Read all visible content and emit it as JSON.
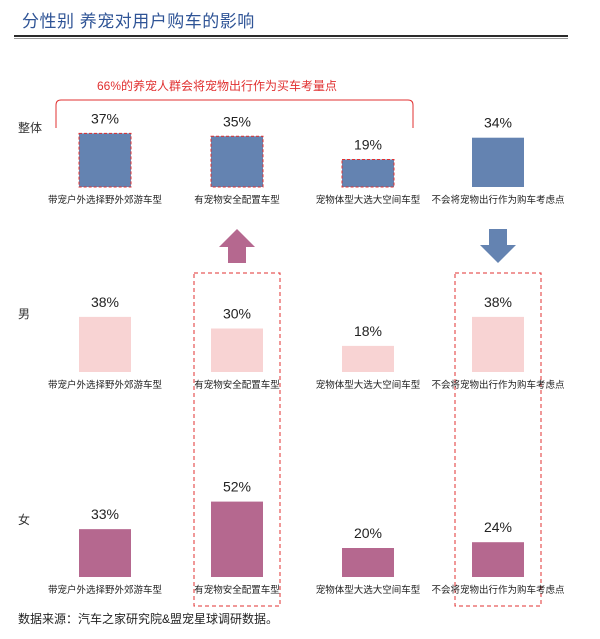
{
  "header": {
    "title": "分性别  养宠对用户购车的影响"
  },
  "footer": {
    "source": "数据来源：汽车之家研究院&盟宠星球调研数据。"
  },
  "annotation": {
    "text": "66%的养宠人群会将宠物出行作为买车考量点"
  },
  "colors": {
    "overall": "#6483b1",
    "male": "#f8d3d3",
    "female": "#b5688f",
    "highlight_dash": "#e03030",
    "arrow_up": "#b5688f",
    "arrow_down": "#6483b1"
  },
  "chart_data": {
    "type": "bar",
    "categories": [
      "带宠户外选择野外郊游车型",
      "有宠物安全配置车型",
      "宠物体型大选大空间车型",
      "不会将宠物出行作为购车考虑点"
    ],
    "series": [
      {
        "name": "整体",
        "values": [
          37,
          35,
          19,
          34
        ],
        "labels": [
          "37%",
          "35%",
          "19%",
          "34%"
        ]
      },
      {
        "name": "男",
        "values": [
          38,
          30,
          18,
          38
        ],
        "labels": [
          "38%",
          "30%",
          "18%",
          "38%"
        ]
      },
      {
        "name": "女",
        "values": [
          33,
          52,
          20,
          24
        ],
        "labels": [
          "33%",
          "52%",
          "20%",
          "24%"
        ]
      }
    ],
    "unit": "%",
    "grid": false,
    "legend": "none",
    "highlighted_categories": [
      1,
      3
    ],
    "overall_dashed_categories": [
      0,
      1,
      2
    ],
    "arrows": [
      {
        "category": 1,
        "direction": "up"
      },
      {
        "category": 3,
        "direction": "down"
      }
    ]
  }
}
